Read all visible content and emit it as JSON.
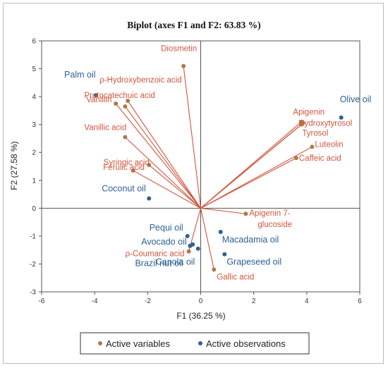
{
  "chart_data": {
    "type": "scatter",
    "title": "Biplot (axes F1 and F2: 63.83 %)",
    "xlabel": "F1 (36.25 %)",
    "ylabel": "F2 (27.58 %)",
    "xlim": [
      -6,
      6
    ],
    "ylim": [
      -3,
      6
    ],
    "x_ticks": [
      -6,
      -4,
      -2,
      0,
      2,
      4,
      6
    ],
    "y_ticks": [
      -3,
      -2,
      -1,
      0,
      1,
      2,
      3,
      4,
      5,
      6
    ],
    "grid": false,
    "legend_position": "bottom",
    "colors": {
      "variables": "#d0563c",
      "observations": "#2e6096",
      "var_marker": "#b0784a"
    },
    "series": [
      {
        "name": "Active variables",
        "points": [
          {
            "label": "Diosmetin",
            "x": -0.65,
            "y": 5.1
          },
          {
            "label": "ρ-Hydroxybenzoic acid",
            "x": -2.75,
            "y": 3.85
          },
          {
            "label": "Protocatechuic acid",
            "x": -2.85,
            "y": 3.65
          },
          {
            "label": "Vanillin",
            "x": -3.2,
            "y": 3.75
          },
          {
            "label": "Vanillic acid",
            "x": -2.85,
            "y": 2.55
          },
          {
            "label": "Ferulic acid",
            "x": -1.95,
            "y": 1.55
          },
          {
            "label": "Syringic acid",
            "x": -2.55,
            "y": 1.35
          },
          {
            "label": "Apigenin",
            "x": 3.8,
            "y": 3.1
          },
          {
            "label": "Hydroxytyrosol",
            "x": 3.85,
            "y": 3.05
          },
          {
            "label": "Tyrosol",
            "x": 3.8,
            "y": 3.0
          },
          {
            "label": "Luteolin",
            "x": 4.2,
            "y": 2.2
          },
          {
            "label": "Caffeic acid",
            "x": 3.6,
            "y": 1.8
          },
          {
            "label": "Apigenin 7-glucoside",
            "x": 1.7,
            "y": -0.2
          },
          {
            "label": "ρ-Coumaric acid",
            "x": -0.45,
            "y": -1.55
          },
          {
            "label": "Gallic acid",
            "x": 0.5,
            "y": -2.2
          }
        ]
      },
      {
        "name": "Active observations",
        "points": [
          {
            "label": "Palm oil",
            "x": -3.95,
            "y": 4.05
          },
          {
            "label": "Olive oil",
            "x": 5.3,
            "y": 3.25
          },
          {
            "label": "Coconut oil",
            "x": -1.95,
            "y": 0.35
          },
          {
            "label": "Pequi oil",
            "x": -0.5,
            "y": -1.0
          },
          {
            "label": "Avocado oil",
            "x": -0.3,
            "y": -1.3
          },
          {
            "label": "Canola oil",
            "x": -0.1,
            "y": -1.45
          },
          {
            "label": "Brazil nut oil",
            "x": -0.4,
            "y": -1.35
          },
          {
            "label": "Macadamia oil",
            "x": 0.75,
            "y": -0.85
          },
          {
            "label": "Grapeseed oil",
            "x": 0.9,
            "y": -1.65
          }
        ]
      }
    ]
  }
}
